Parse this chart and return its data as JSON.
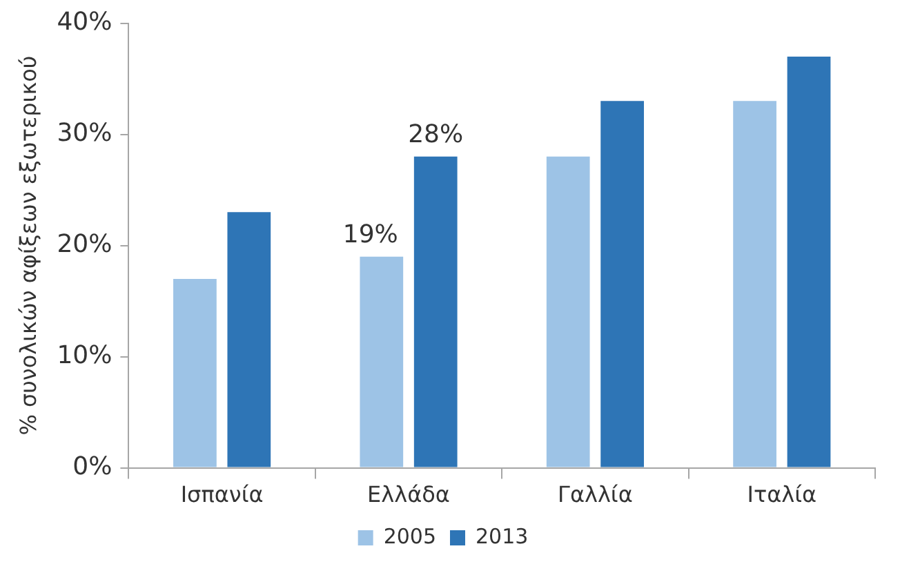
{
  "chart_data": {
    "type": "bar",
    "ylabel": "% συνολικών αφίξεων εξωτερικού",
    "categories": [
      "Ισπανία",
      "Ελλάδα",
      "Γαλλία",
      "Ιταλία"
    ],
    "series": [
      {
        "name": "2005",
        "color": "#9dc3e6",
        "values": [
          17,
          19,
          28,
          33
        ],
        "value_labels": [
          null,
          "19%",
          null,
          null
        ]
      },
      {
        "name": "2013",
        "color": "#2e75b6",
        "values": [
          23,
          28,
          33,
          37
        ],
        "value_labels": [
          null,
          "28%",
          null,
          null
        ]
      }
    ],
    "ylim": [
      0,
      40
    ],
    "yticks": [
      {
        "value": 0,
        "label": "0%"
      },
      {
        "value": 10,
        "label": "10%"
      },
      {
        "value": 20,
        "label": "20%"
      },
      {
        "value": 30,
        "label": "30%"
      },
      {
        "value": 40,
        "label": "40%"
      }
    ],
    "grid": false,
    "legend": "bottom"
  }
}
